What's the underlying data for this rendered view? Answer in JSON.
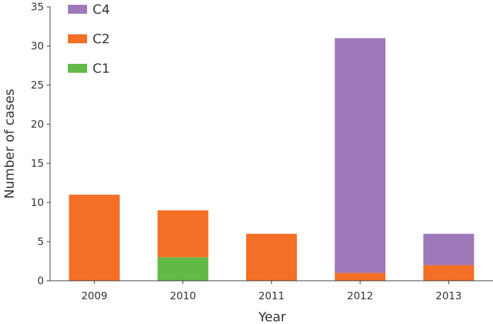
{
  "chart_data": {
    "type": "bar",
    "stacked": true,
    "categories": [
      "2009",
      "2010",
      "2011",
      "2012",
      "2013"
    ],
    "series": [
      {
        "name": "C1",
        "color": "#62b946",
        "values": [
          0,
          3,
          0,
          0,
          0
        ]
      },
      {
        "name": "C2",
        "color": "#f26f25",
        "values": [
          11,
          6,
          6,
          1,
          2
        ]
      },
      {
        "name": "C4",
        "color": "#9e79b9",
        "values": [
          0,
          0,
          0,
          30,
          4
        ]
      }
    ],
    "legend_order": [
      "C4",
      "C2",
      "C1"
    ],
    "legend_position": "top-left",
    "xlabel": "Year",
    "ylabel": "Number of cases",
    "ylim": [
      0,
      35
    ],
    "yticks": [
      0,
      5,
      10,
      15,
      20,
      25,
      30,
      35
    ],
    "grid": false
  }
}
